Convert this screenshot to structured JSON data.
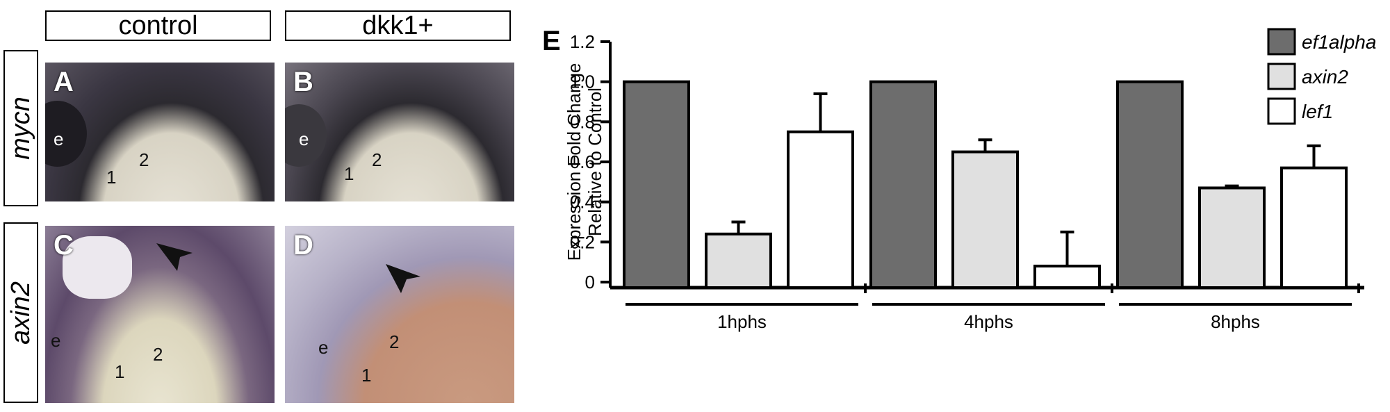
{
  "panels": {
    "col_headers": [
      "control",
      "dkk1+"
    ],
    "row_labels": [
      "mycn",
      "axin2"
    ],
    "letters": [
      "A",
      "B",
      "C",
      "D",
      "E"
    ],
    "markers": {
      "eye": "e",
      "one": "1",
      "two": "2"
    }
  },
  "chart_data": {
    "type": "bar",
    "panel_letter": "E",
    "categories": [
      "1hphs",
      "4hphs",
      "8hphs"
    ],
    "series": [
      {
        "name": "ef1alpha",
        "color": "#6d6d6d",
        "values": [
          1.0,
          1.0,
          1.0
        ],
        "errors": [
          0,
          0,
          0
        ]
      },
      {
        "name": "axin2",
        "color": "#e0e0e0",
        "values": [
          0.24,
          0.65,
          0.47
        ],
        "errors": [
          0.06,
          0.06,
          0.01
        ]
      },
      {
        "name": "lef1",
        "color": "#ffffff",
        "values": [
          0.75,
          0.08,
          0.57
        ],
        "errors": [
          0.19,
          0.17,
          0.11
        ]
      }
    ],
    "ylabel_line1": "Expression Fold Change",
    "ylabel_line2": "Relative to Control",
    "ylim": [
      0,
      1.2
    ],
    "yticks": [
      "0",
      "0.2",
      "0.4",
      "0.6",
      "0.8",
      "1.0",
      "1.2"
    ],
    "legend_position": "top-right"
  }
}
